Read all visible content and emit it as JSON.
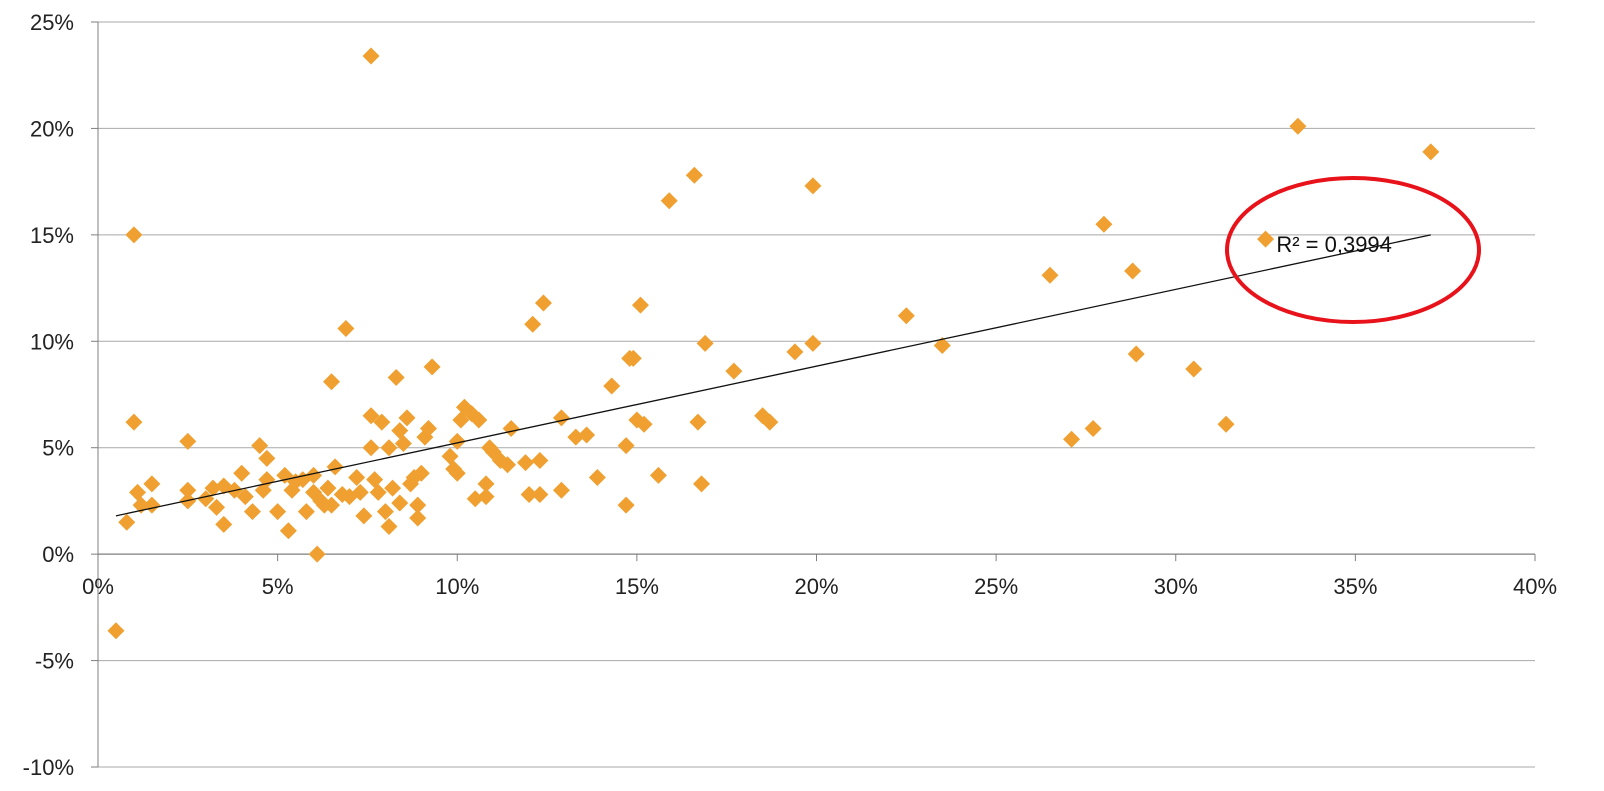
{
  "chart_data": {
    "type": "scatter",
    "title": "",
    "xlabel": "",
    "ylabel": "",
    "xlim": [
      0,
      40
    ],
    "ylim": [
      -10,
      25
    ],
    "x_ticks": [
      "0%",
      "5%",
      "10%",
      "15%",
      "20%",
      "25%",
      "30%",
      "35%",
      "40%"
    ],
    "y_ticks": [
      "25%",
      "20%",
      "15%",
      "10%",
      "5%",
      "0%",
      "-5%",
      "-10%"
    ],
    "grid": "horizontal",
    "marker": "diamond",
    "marker_color": "#F0A030",
    "trendline": {
      "x": [
        0.5,
        37.1
      ],
      "y": [
        1.8,
        15.0
      ],
      "color": "#111111"
    },
    "annotation": {
      "text": "R² = 0,3994",
      "x": 32.8,
      "y": 14.8,
      "highlight_color": "#E8121B"
    },
    "points": [
      [
        0.5,
        -3.6
      ],
      [
        0.8,
        1.5
      ],
      [
        1.0,
        15.0
      ],
      [
        1.0,
        6.2
      ],
      [
        1.1,
        2.9
      ],
      [
        1.2,
        2.3
      ],
      [
        1.5,
        2.3
      ],
      [
        1.5,
        3.3
      ],
      [
        2.5,
        5.3
      ],
      [
        2.5,
        3.0
      ],
      [
        2.5,
        2.5
      ],
      [
        3.0,
        2.6
      ],
      [
        3.2,
        3.1
      ],
      [
        3.3,
        2.2
      ],
      [
        3.5,
        3.2
      ],
      [
        3.5,
        1.4
      ],
      [
        3.8,
        3.0
      ],
      [
        4.0,
        3.8
      ],
      [
        4.1,
        2.7
      ],
      [
        4.3,
        2.0
      ],
      [
        4.5,
        5.1
      ],
      [
        4.6,
        3.0
      ],
      [
        4.7,
        4.5
      ],
      [
        4.7,
        3.5
      ],
      [
        5.0,
        2.0
      ],
      [
        5.2,
        3.7
      ],
      [
        5.3,
        1.1
      ],
      [
        5.4,
        3.0
      ],
      [
        5.5,
        3.4
      ],
      [
        5.7,
        3.5
      ],
      [
        5.8,
        2.0
      ],
      [
        6.0,
        3.7
      ],
      [
        6.0,
        2.9
      ],
      [
        6.1,
        0.0
      ],
      [
        6.2,
        2.5
      ],
      [
        6.3,
        2.3
      ],
      [
        6.4,
        3.1
      ],
      [
        6.5,
        8.1
      ],
      [
        6.5,
        2.3
      ],
      [
        6.6,
        4.1
      ],
      [
        6.8,
        2.8
      ],
      [
        6.9,
        10.6
      ],
      [
        7.0,
        2.7
      ],
      [
        7.2,
        3.6
      ],
      [
        7.3,
        2.9
      ],
      [
        7.4,
        1.8
      ],
      [
        7.6,
        23.4
      ],
      [
        7.6,
        6.5
      ],
      [
        7.6,
        5.0
      ],
      [
        7.7,
        3.5
      ],
      [
        7.8,
        2.9
      ],
      [
        7.9,
        6.2
      ],
      [
        8.0,
        2.0
      ],
      [
        8.1,
        1.3
      ],
      [
        8.1,
        5.0
      ],
      [
        8.2,
        3.1
      ],
      [
        8.3,
        8.3
      ],
      [
        8.4,
        5.8
      ],
      [
        8.4,
        2.4
      ],
      [
        8.5,
        5.2
      ],
      [
        8.6,
        6.4
      ],
      [
        8.7,
        3.3
      ],
      [
        8.8,
        3.6
      ],
      [
        8.9,
        2.3
      ],
      [
        8.9,
        1.7
      ],
      [
        9.0,
        3.8
      ],
      [
        9.1,
        5.5
      ],
      [
        9.2,
        5.9
      ],
      [
        9.3,
        8.8
      ],
      [
        9.8,
        4.6
      ],
      [
        9.9,
        4.0
      ],
      [
        10.0,
        3.8
      ],
      [
        10.0,
        5.3
      ],
      [
        10.1,
        6.3
      ],
      [
        10.2,
        6.9
      ],
      [
        10.4,
        6.6
      ],
      [
        10.5,
        2.6
      ],
      [
        10.6,
        6.3
      ],
      [
        10.8,
        3.3
      ],
      [
        10.8,
        2.7
      ],
      [
        10.9,
        5.0
      ],
      [
        11.0,
        4.8
      ],
      [
        11.2,
        4.4
      ],
      [
        11.4,
        4.2
      ],
      [
        11.5,
        5.9
      ],
      [
        11.9,
        4.3
      ],
      [
        12.0,
        2.8
      ],
      [
        12.1,
        10.8
      ],
      [
        12.3,
        2.8
      ],
      [
        12.3,
        4.4
      ],
      [
        12.4,
        11.8
      ],
      [
        12.9,
        3.0
      ],
      [
        12.9,
        6.4
      ],
      [
        13.3,
        5.5
      ],
      [
        13.6,
        5.6
      ],
      [
        13.9,
        3.6
      ],
      [
        14.3,
        7.9
      ],
      [
        14.7,
        2.3
      ],
      [
        14.7,
        5.1
      ],
      [
        14.8,
        9.2
      ],
      [
        14.9,
        9.2
      ],
      [
        15.0,
        6.3
      ],
      [
        15.1,
        11.7
      ],
      [
        15.2,
        6.1
      ],
      [
        15.6,
        3.7
      ],
      [
        15.9,
        16.6
      ],
      [
        16.6,
        17.8
      ],
      [
        16.7,
        6.2
      ],
      [
        16.8,
        3.3
      ],
      [
        16.9,
        9.9
      ],
      [
        17.7,
        8.6
      ],
      [
        18.5,
        6.5
      ],
      [
        18.7,
        6.2
      ],
      [
        19.4,
        9.5
      ],
      [
        19.9,
        17.3
      ],
      [
        19.9,
        9.9
      ],
      [
        22.5,
        11.2
      ],
      [
        23.5,
        9.8
      ],
      [
        26.5,
        13.1
      ],
      [
        27.1,
        5.4
      ],
      [
        27.7,
        5.9
      ],
      [
        28.0,
        15.5
      ],
      [
        28.8,
        13.3
      ],
      [
        28.9,
        9.4
      ],
      [
        30.5,
        8.7
      ],
      [
        31.4,
        6.1
      ],
      [
        32.5,
        14.8
      ],
      [
        33.4,
        20.1
      ],
      [
        37.1,
        18.9
      ]
    ]
  }
}
